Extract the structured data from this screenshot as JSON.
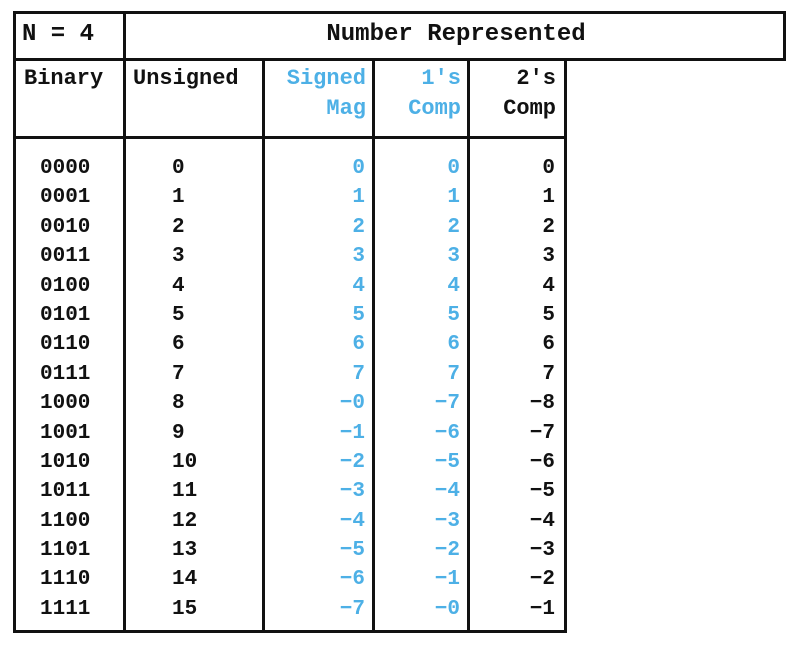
{
  "header": {
    "n_label": "N = 4",
    "title": "Number Represented"
  },
  "columns": {
    "binary": "Binary",
    "unsigned": "Unsigned",
    "signed_mag": [
      "Signed",
      "Mag"
    ],
    "ones_comp": [
      "1's",
      "Comp"
    ],
    "twos_comp": [
      "2's",
      "Comp"
    ]
  },
  "colors": {
    "black": "#111111",
    "blue": "#4db0e6"
  },
  "rows": [
    {
      "binary": "0000",
      "unsigned": "0",
      "signed_mag": "0",
      "ones_comp": "0",
      "twos_comp": "0"
    },
    {
      "binary": "0001",
      "unsigned": "1",
      "signed_mag": "1",
      "ones_comp": "1",
      "twos_comp": "1"
    },
    {
      "binary": "0010",
      "unsigned": "2",
      "signed_mag": "2",
      "ones_comp": "2",
      "twos_comp": "2"
    },
    {
      "binary": "0011",
      "unsigned": "3",
      "signed_mag": "3",
      "ones_comp": "3",
      "twos_comp": "3"
    },
    {
      "binary": "0100",
      "unsigned": "4",
      "signed_mag": "4",
      "ones_comp": "4",
      "twos_comp": "4"
    },
    {
      "binary": "0101",
      "unsigned": "5",
      "signed_mag": "5",
      "ones_comp": "5",
      "twos_comp": "5"
    },
    {
      "binary": "0110",
      "unsigned": "6",
      "signed_mag": "6",
      "ones_comp": "6",
      "twos_comp": "6"
    },
    {
      "binary": "0111",
      "unsigned": "7",
      "signed_mag": "7",
      "ones_comp": "7",
      "twos_comp": "7"
    },
    {
      "binary": "1000",
      "unsigned": "8",
      "signed_mag": "−0",
      "ones_comp": "−7",
      "twos_comp": "−8"
    },
    {
      "binary": "1001",
      "unsigned": "9",
      "signed_mag": "−1",
      "ones_comp": "−6",
      "twos_comp": "−7"
    },
    {
      "binary": "1010",
      "unsigned": "10",
      "signed_mag": "−2",
      "ones_comp": "−5",
      "twos_comp": "−6"
    },
    {
      "binary": "1011",
      "unsigned": "11",
      "signed_mag": "−3",
      "ones_comp": "−4",
      "twos_comp": "−5"
    },
    {
      "binary": "1100",
      "unsigned": "12",
      "signed_mag": "−4",
      "ones_comp": "−3",
      "twos_comp": "−4"
    },
    {
      "binary": "1101",
      "unsigned": "13",
      "signed_mag": "−5",
      "ones_comp": "−2",
      "twos_comp": "−3"
    },
    {
      "binary": "1110",
      "unsigned": "14",
      "signed_mag": "−6",
      "ones_comp": "−1",
      "twos_comp": "−2"
    },
    {
      "binary": "1111",
      "unsigned": "15",
      "signed_mag": "−7",
      "ones_comp": "−0",
      "twos_comp": "−1"
    }
  ]
}
